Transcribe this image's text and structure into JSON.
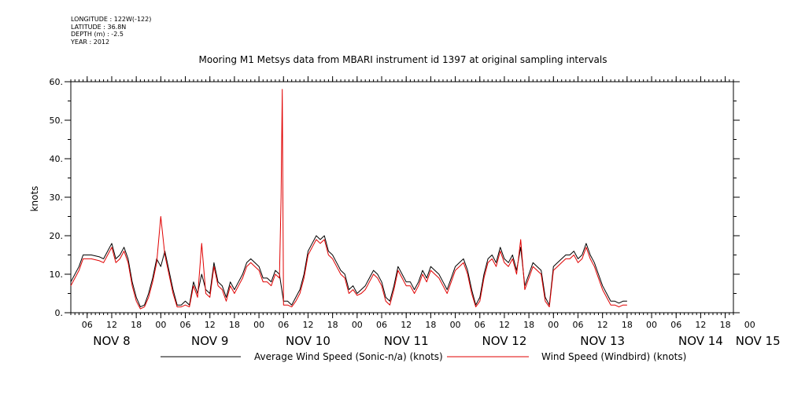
{
  "meta": [
    "LONGITUDE : 122W(-122)",
    "LATITUDE : 36.8N",
    "DEPTH (m) : -2.5",
    "YEAR : 2012"
  ],
  "colors": {
    "black_series": "#000000",
    "red_series": "#e00000",
    "axis": "#000000"
  },
  "chart_data": {
    "type": "line",
    "title": "Mooring M1 Metsys data from MBARI instrument id 1397 at original sampling intervals",
    "ylabel": "knots",
    "xlabel": "",
    "ylim": [
      0,
      60
    ],
    "y_ticks": [
      "0.",
      "10.",
      "20.",
      "30.",
      "40.",
      "50.",
      "60."
    ],
    "x_unit": "hours since 2012-11-07 00:00",
    "xlim": [
      2,
      164
    ],
    "hour_ticks": [
      {
        "t": 6,
        "label": "06"
      },
      {
        "t": 12,
        "label": "12"
      },
      {
        "t": 18,
        "label": "18"
      },
      {
        "t": 24,
        "label": "00"
      },
      {
        "t": 30,
        "label": "06"
      },
      {
        "t": 36,
        "label": "12"
      },
      {
        "t": 42,
        "label": "18"
      },
      {
        "t": 48,
        "label": "00"
      },
      {
        "t": 54,
        "label": "06"
      },
      {
        "t": 60,
        "label": "12"
      },
      {
        "t": 66,
        "label": "18"
      },
      {
        "t": 72,
        "label": "00"
      },
      {
        "t": 78,
        "label": "06"
      },
      {
        "t": 84,
        "label": "12"
      },
      {
        "t": 90,
        "label": "18"
      },
      {
        "t": 96,
        "label": "00"
      },
      {
        "t": 102,
        "label": "06"
      },
      {
        "t": 108,
        "label": "12"
      },
      {
        "t": 114,
        "label": "18"
      },
      {
        "t": 120,
        "label": "00"
      },
      {
        "t": 126,
        "label": "06"
      },
      {
        "t": 132,
        "label": "12"
      },
      {
        "t": 138,
        "label": "18"
      },
      {
        "t": 144,
        "label": "00"
      },
      {
        "t": 150,
        "label": "06"
      },
      {
        "t": 156,
        "label": "12"
      },
      {
        "t": 162,
        "label": "18"
      },
      {
        "t": 168,
        "label": "00"
      }
    ],
    "day_labels": [
      {
        "t": 12,
        "label": "NOV  8"
      },
      {
        "t": 36,
        "label": "NOV  9"
      },
      {
        "t": 60,
        "label": "NOV 10"
      },
      {
        "t": 84,
        "label": "NOV 11"
      },
      {
        "t": 108,
        "label": "NOV 12"
      },
      {
        "t": 132,
        "label": "NOV 13"
      },
      {
        "t": 156,
        "label": "NOV 14"
      },
      {
        "t": 170,
        "label": "NOV 15"
      }
    ],
    "series": [
      {
        "name": "Average Wind Speed (Sonic-n/a) (knots)",
        "color": "#000000",
        "points": [
          [
            2,
            8
          ],
          [
            4,
            12
          ],
          [
            5,
            15
          ],
          [
            7,
            15
          ],
          [
            9,
            14.5
          ],
          [
            10,
            14
          ],
          [
            11,
            16
          ],
          [
            12,
            18
          ],
          [
            13,
            14
          ],
          [
            14,
            15
          ],
          [
            15,
            17
          ],
          [
            16,
            14
          ],
          [
            17,
            8
          ],
          [
            18,
            4
          ],
          [
            19,
            1.5
          ],
          [
            20,
            2
          ],
          [
            21,
            5
          ],
          [
            22,
            9
          ],
          [
            23,
            14
          ],
          [
            24,
            12
          ],
          [
            25,
            16
          ],
          [
            26,
            11
          ],
          [
            27,
            6
          ],
          [
            28,
            2
          ],
          [
            29,
            2
          ],
          [
            30,
            3
          ],
          [
            31,
            2
          ],
          [
            32,
            8
          ],
          [
            33,
            5
          ],
          [
            34,
            10
          ],
          [
            35,
            6
          ],
          [
            36,
            5
          ],
          [
            37,
            13
          ],
          [
            38,
            8
          ],
          [
            39,
            7
          ],
          [
            40,
            4
          ],
          [
            41,
            8
          ],
          [
            42,
            6
          ],
          [
            43,
            8
          ],
          [
            44,
            10
          ],
          [
            45,
            13
          ],
          [
            46,
            14
          ],
          [
            47,
            13
          ],
          [
            48,
            12
          ],
          [
            49,
            9
          ],
          [
            50,
            9
          ],
          [
            51,
            8
          ],
          [
            52,
            11
          ],
          [
            53,
            10
          ],
          [
            54,
            3
          ],
          [
            55,
            3
          ],
          [
            56,
            2
          ],
          [
            57,
            4
          ],
          [
            58,
            6
          ],
          [
            59,
            10
          ],
          [
            60,
            16
          ],
          [
            61,
            18
          ],
          [
            62,
            20
          ],
          [
            63,
            19
          ],
          [
            64,
            20
          ],
          [
            65,
            16
          ],
          [
            66,
            15
          ],
          [
            67,
            13
          ],
          [
            68,
            11
          ],
          [
            69,
            10
          ],
          [
            70,
            6
          ],
          [
            71,
            7
          ],
          [
            72,
            5
          ],
          [
            73,
            6
          ],
          [
            74,
            7
          ],
          [
            75,
            9
          ],
          [
            76,
            11
          ],
          [
            77,
            10
          ],
          [
            78,
            8
          ],
          [
            79,
            4
          ],
          [
            80,
            3
          ],
          [
            81,
            7
          ],
          [
            82,
            12
          ],
          [
            83,
            10
          ],
          [
            84,
            8
          ],
          [
            85,
            8
          ],
          [
            86,
            6
          ],
          [
            87,
            8
          ],
          [
            88,
            11
          ],
          [
            89,
            9
          ],
          [
            90,
            12
          ],
          [
            91,
            11
          ],
          [
            92,
            10
          ],
          [
            93,
            8
          ],
          [
            94,
            6
          ],
          [
            95,
            9
          ],
          [
            96,
            12
          ],
          [
            97,
            13
          ],
          [
            98,
            14
          ],
          [
            99,
            11
          ],
          [
            100,
            6
          ],
          [
            101,
            2
          ],
          [
            102,
            4
          ],
          [
            103,
            10
          ],
          [
            104,
            14
          ],
          [
            105,
            15
          ],
          [
            106,
            13
          ],
          [
            107,
            17
          ],
          [
            108,
            14
          ],
          [
            109,
            13
          ],
          [
            110,
            15
          ],
          [
            111,
            11
          ],
          [
            112,
            17
          ],
          [
            113,
            7
          ],
          [
            114,
            10
          ],
          [
            115,
            13
          ],
          [
            116,
            12
          ],
          [
            117,
            11
          ],
          [
            118,
            4
          ],
          [
            119,
            2
          ],
          [
            120,
            12
          ],
          [
            121,
            13
          ],
          [
            122,
            14
          ],
          [
            123,
            15
          ],
          [
            124,
            15
          ],
          [
            125,
            16
          ],
          [
            126,
            14
          ],
          [
            127,
            15
          ],
          [
            128,
            18
          ],
          [
            129,
            15
          ],
          [
            130,
            13
          ],
          [
            131,
            10
          ],
          [
            132,
            7
          ],
          [
            133,
            5
          ],
          [
            134,
            3
          ],
          [
            135,
            3
          ],
          [
            136,
            2.5
          ],
          [
            137,
            3
          ],
          [
            138,
            3
          ]
        ]
      },
      {
        "name": "Wind Speed (Windbird) (knots)",
        "color": "#e00000",
        "points": [
          [
            2,
            7
          ],
          [
            4,
            11
          ],
          [
            5,
            14
          ],
          [
            7,
            14
          ],
          [
            9,
            13.5
          ],
          [
            10,
            13
          ],
          [
            11,
            15
          ],
          [
            12,
            17
          ],
          [
            13,
            13
          ],
          [
            14,
            14
          ],
          [
            15,
            16
          ],
          [
            16,
            13
          ],
          [
            17,
            7
          ],
          [
            18,
            3
          ],
          [
            19,
            1
          ],
          [
            20,
            1.5
          ],
          [
            21,
            4
          ],
          [
            22,
            8
          ],
          [
            23,
            13
          ],
          [
            24,
            25
          ],
          [
            25,
            15
          ],
          [
            26,
            10
          ],
          [
            27,
            5
          ],
          [
            28,
            1.5
          ],
          [
            29,
            1.5
          ],
          [
            30,
            2
          ],
          [
            31,
            1.5
          ],
          [
            32,
            7
          ],
          [
            33,
            4
          ],
          [
            34,
            18
          ],
          [
            35,
            5
          ],
          [
            36,
            4
          ],
          [
            37,
            12
          ],
          [
            38,
            7
          ],
          [
            39,
            6
          ],
          [
            40,
            3
          ],
          [
            41,
            7
          ],
          [
            42,
            5
          ],
          [
            43,
            7
          ],
          [
            44,
            9
          ],
          [
            45,
            12
          ],
          [
            46,
            13
          ],
          [
            47,
            12
          ],
          [
            48,
            11
          ],
          [
            49,
            8
          ],
          [
            50,
            8
          ],
          [
            51,
            7
          ],
          [
            52,
            10
          ],
          [
            53,
            9
          ],
          [
            53.4,
            30
          ],
          [
            53.7,
            58
          ],
          [
            54,
            2
          ],
          [
            55,
            2
          ],
          [
            56,
            1.5
          ],
          [
            57,
            3
          ],
          [
            58,
            5
          ],
          [
            59,
            9
          ],
          [
            60,
            15
          ],
          [
            61,
            17
          ],
          [
            62,
            19
          ],
          [
            63,
            18
          ],
          [
            64,
            19
          ],
          [
            65,
            15
          ],
          [
            66,
            14
          ],
          [
            67,
            12
          ],
          [
            68,
            10
          ],
          [
            69,
            9
          ],
          [
            70,
            5
          ],
          [
            71,
            6
          ],
          [
            72,
            4.5
          ],
          [
            73,
            5
          ],
          [
            74,
            6
          ],
          [
            75,
            8
          ],
          [
            76,
            10
          ],
          [
            77,
            9
          ],
          [
            78,
            7
          ],
          [
            79,
            3
          ],
          [
            80,
            2
          ],
          [
            81,
            6
          ],
          [
            82,
            11
          ],
          [
            83,
            9
          ],
          [
            84,
            7
          ],
          [
            85,
            7
          ],
          [
            86,
            5
          ],
          [
            87,
            7
          ],
          [
            88,
            10
          ],
          [
            89,
            8
          ],
          [
            90,
            11
          ],
          [
            91,
            10
          ],
          [
            92,
            9
          ],
          [
            93,
            7
          ],
          [
            94,
            5
          ],
          [
            95,
            8
          ],
          [
            96,
            11
          ],
          [
            97,
            12
          ],
          [
            98,
            13
          ],
          [
            99,
            10
          ],
          [
            100,
            5
          ],
          [
            101,
            1.5
          ],
          [
            102,
            3
          ],
          [
            103,
            9
          ],
          [
            104,
            13
          ],
          [
            105,
            14
          ],
          [
            106,
            12
          ],
          [
            107,
            16
          ],
          [
            108,
            13
          ],
          [
            109,
            12
          ],
          [
            110,
            14
          ],
          [
            111,
            10
          ],
          [
            112,
            19
          ],
          [
            113,
            6
          ],
          [
            114,
            9
          ],
          [
            115,
            12
          ],
          [
            116,
            11
          ],
          [
            117,
            10
          ],
          [
            118,
            3
          ],
          [
            119,
            1.5
          ],
          [
            120,
            11
          ],
          [
            121,
            12
          ],
          [
            122,
            13
          ],
          [
            123,
            14
          ],
          [
            124,
            14
          ],
          [
            125,
            15
          ],
          [
            126,
            13
          ],
          [
            127,
            14
          ],
          [
            128,
            17
          ],
          [
            129,
            14
          ],
          [
            130,
            12
          ],
          [
            131,
            9
          ],
          [
            132,
            6
          ],
          [
            133,
            4
          ],
          [
            134,
            2
          ],
          [
            135,
            2
          ],
          [
            136,
            1.5
          ],
          [
            137,
            2
          ],
          [
            138,
            2
          ]
        ]
      }
    ]
  }
}
